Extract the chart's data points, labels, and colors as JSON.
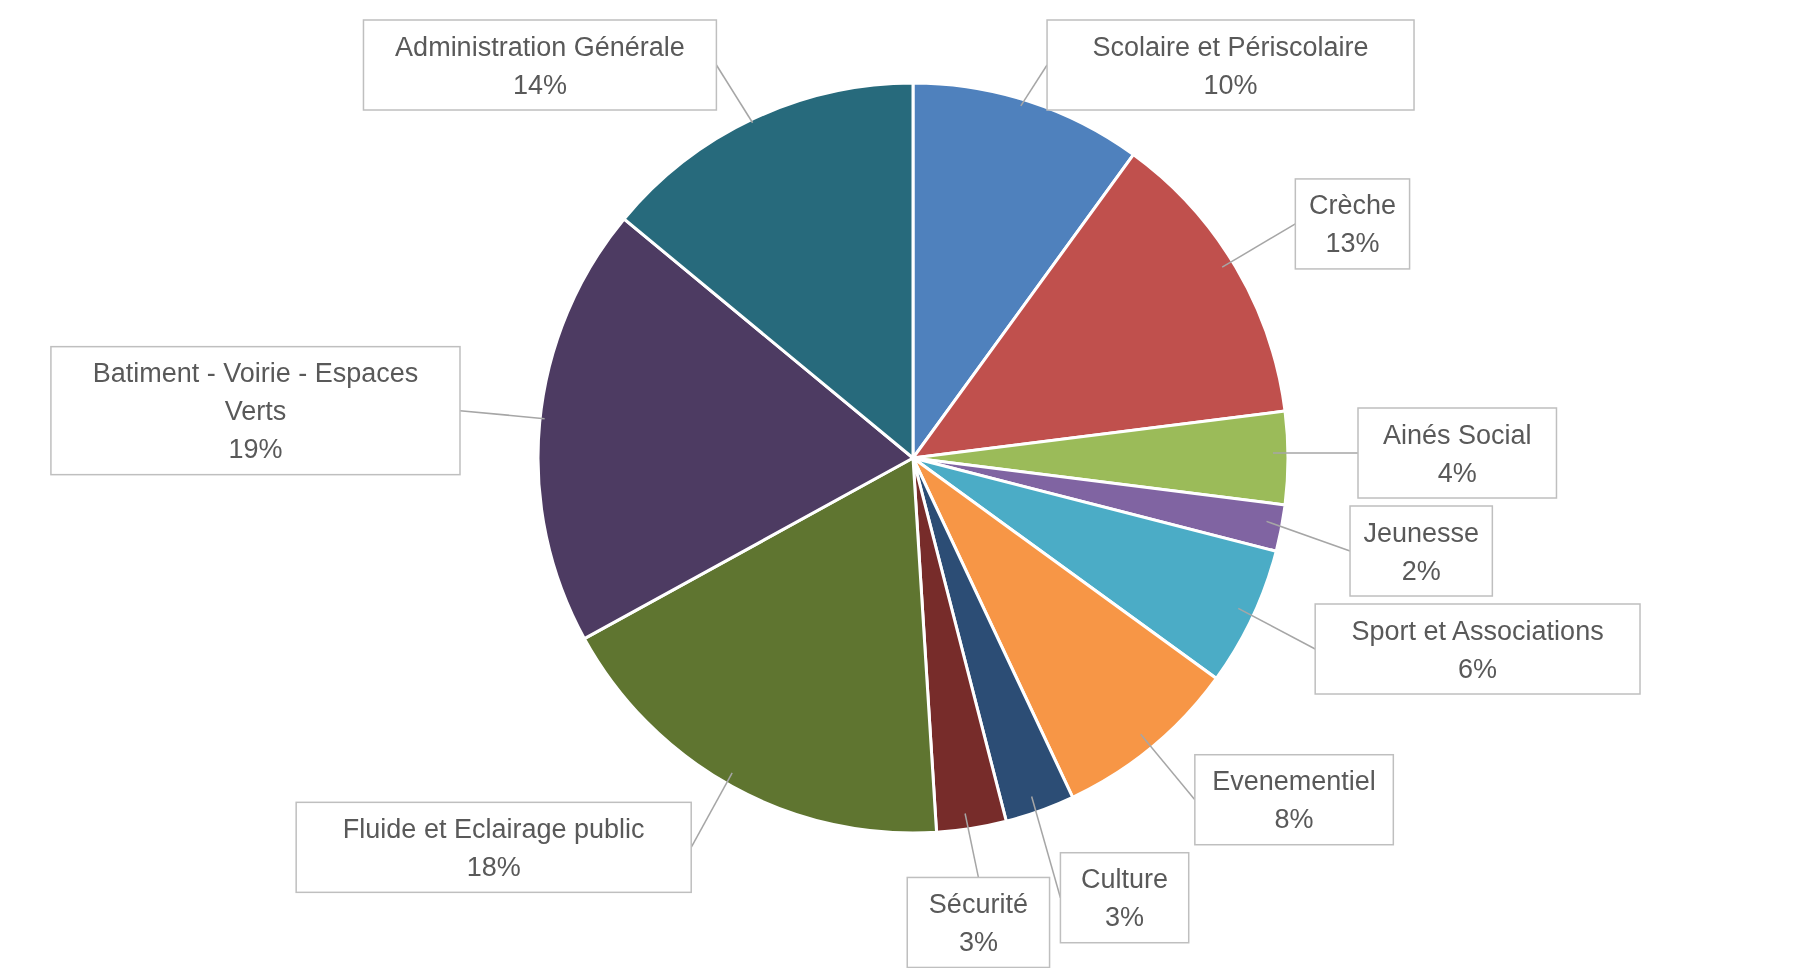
{
  "chart_data": {
    "type": "pie",
    "categories": [
      "Scolaire et Périscolaire",
      "Crèche",
      "Ainés Social",
      "Jeunesse",
      "Sport et Associations",
      "Evenementiel",
      "Culture",
      "Sécurité",
      "Fluide et Eclairage public",
      "Batiment - Voirie - Espaces Verts",
      "Administration Générale"
    ],
    "values": [
      10,
      13,
      4,
      2,
      6,
      8,
      3,
      3,
      18,
      19,
      14
    ],
    "value_labels": [
      "10%",
      "13%",
      "4%",
      "2%",
      "6%",
      "8%",
      "3%",
      "3%",
      "18%",
      "19%",
      "14%"
    ],
    "colors": [
      "#4f81bd",
      "#c0504d",
      "#9bbb59",
      "#8064a2",
      "#4bacc6",
      "#f79646",
      "#2c4d75",
      "#772c2a",
      "#5f7530",
      "#4d3b62",
      "#276a7c"
    ],
    "legend": false
  }
}
